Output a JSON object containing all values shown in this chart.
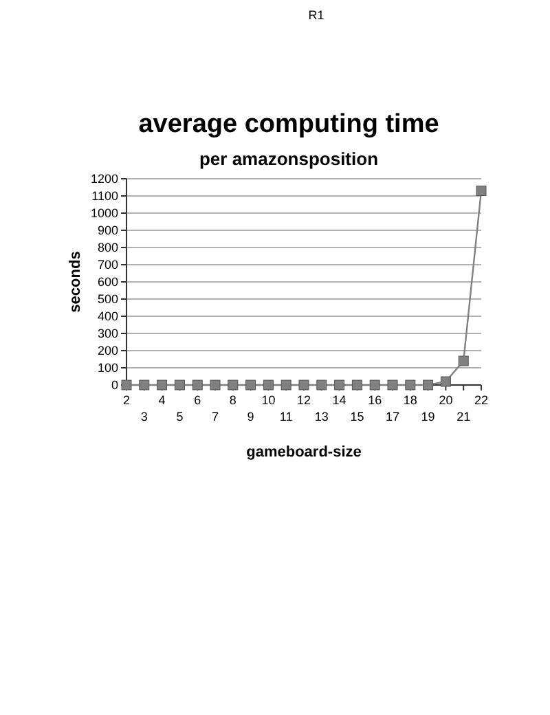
{
  "chart_data": {
    "type": "line",
    "title": "average computing time",
    "subtitle": "per amazonsposition",
    "xlabel": "gameboard-size",
    "ylabel": "seconds",
    "annotations": [
      "R1"
    ],
    "categories": [
      "2",
      "3",
      "4",
      "5",
      "6",
      "7",
      "8",
      "9",
      "10",
      "11",
      "12",
      "13",
      "14",
      "15",
      "16",
      "17",
      "18",
      "19",
      "20",
      "21",
      "22"
    ],
    "series": [
      {
        "color": "#808080",
        "values": [
          0,
          0,
          0,
          0,
          0,
          0,
          0,
          0,
          0,
          0,
          0,
          0,
          0,
          0,
          0,
          0,
          0,
          0,
          20,
          140,
          1130
        ]
      }
    ],
    "ylim": [
      0,
      1200
    ],
    "yticks": [
      0,
      100,
      200,
      300,
      400,
      500,
      600,
      700,
      800,
      900,
      1000,
      1100,
      1200
    ],
    "grid": "y",
    "marker": "square",
    "line_style": "solid"
  }
}
